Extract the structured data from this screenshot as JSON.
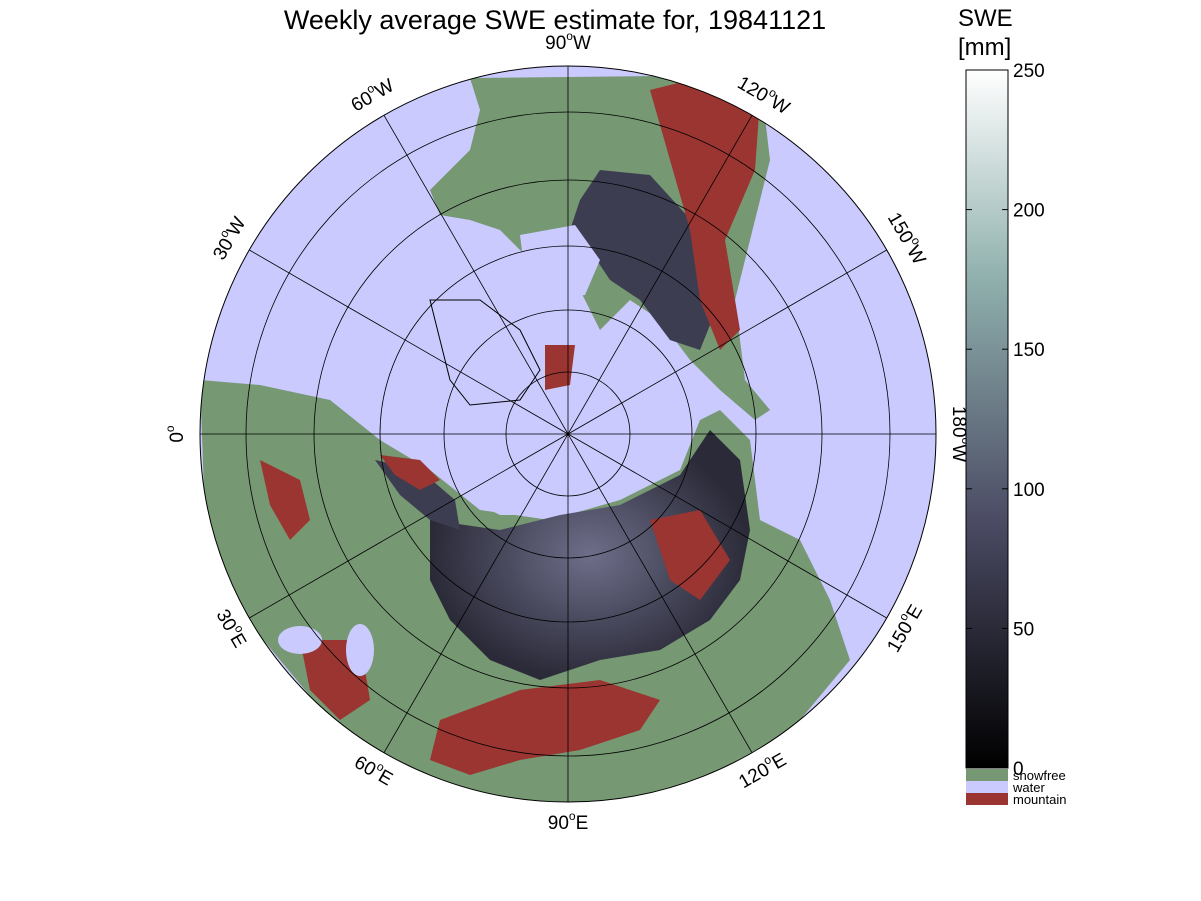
{
  "title": "Weekly average SWE estimate for, 19841121",
  "colorbar": {
    "title_line1": "SWE",
    "title_line2": "[mm]",
    "ticks": [
      "0",
      "50",
      "100",
      "150",
      "200",
      "250"
    ],
    "range_mm": [
      0,
      250
    ],
    "categories": [
      {
        "label": "snowfree",
        "color": "#769873"
      },
      {
        "label": "water",
        "color": "#cacaff"
      },
      {
        "label": "mountain",
        "color": "#9a3531"
      }
    ]
  },
  "longitude_labels": [
    {
      "deg": "90",
      "dir": "W"
    },
    {
      "deg": "120",
      "dir": "W"
    },
    {
      "deg": "150",
      "dir": "W"
    },
    {
      "deg": "180",
      "dir": "W"
    },
    {
      "deg": "150",
      "dir": "E"
    },
    {
      "deg": "120",
      "dir": "E"
    },
    {
      "deg": "90",
      "dir": "E"
    },
    {
      "deg": "60",
      "dir": "E"
    },
    {
      "deg": "30",
      "dir": "E"
    },
    {
      "deg": "0",
      "dir": ""
    },
    {
      "deg": "30",
      "dir": "W"
    },
    {
      "deg": "60",
      "dir": "W"
    }
  ],
  "colors": {
    "water": "#cacaff",
    "snowfree": "#769873",
    "mountain": "#9a3531",
    "snow_low": "#000000",
    "snow_mid": "#4a4a63",
    "snow_high": "#ffffff"
  },
  "projection": "north polar stereographic",
  "graticule": {
    "lat_rings": true,
    "meridian_step_deg": 30
  }
}
